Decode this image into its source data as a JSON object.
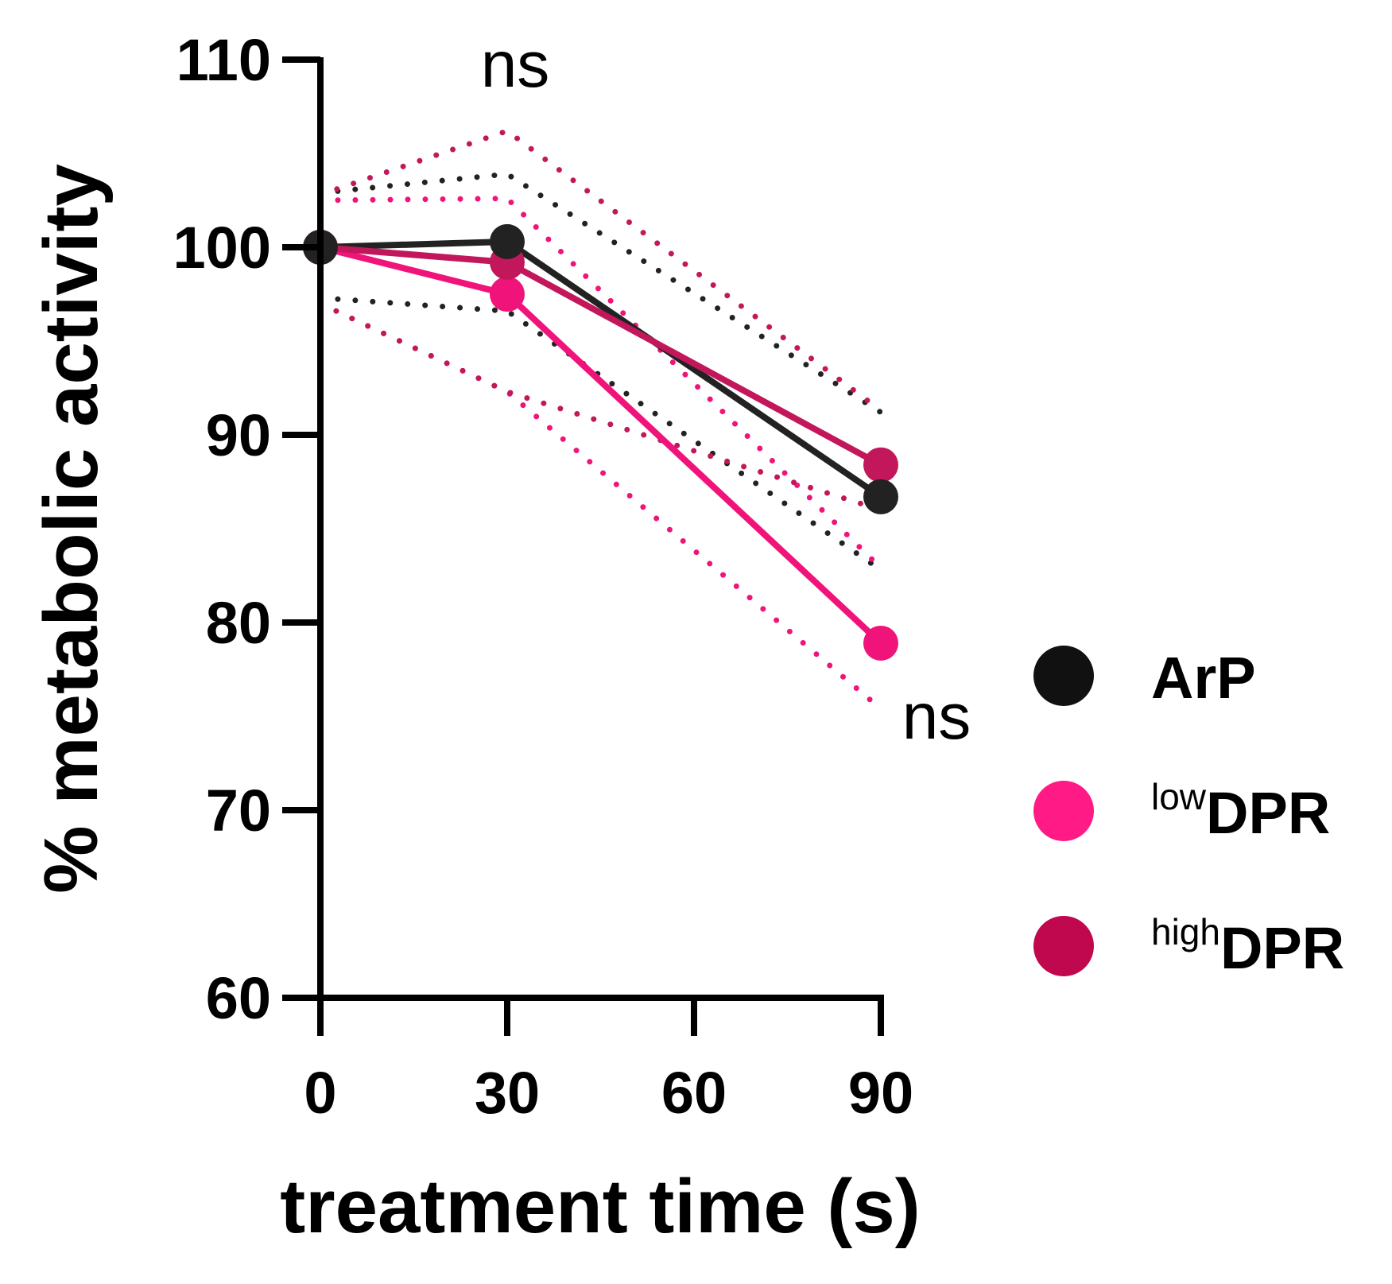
{
  "chart_data": {
    "type": "line",
    "title": "",
    "xlabel": "treatment time (s)",
    "ylabel": "% metabolic activity",
    "x": [
      0,
      30,
      90
    ],
    "xticks": [
      0,
      30,
      60,
      90
    ],
    "xlim": [
      0,
      90
    ],
    "yticks": [
      60,
      70,
      80,
      90,
      100,
      110
    ],
    "ylim": [
      60,
      110
    ],
    "grid": false,
    "legend_position": "right",
    "series": [
      {
        "name": "ArP",
        "legend_main": "ArP",
        "legend_sup": "",
        "color": "#222222",
        "legend_color": "#111111",
        "values": [
          100,
          100.3,
          86.7
        ],
        "upper": [
          102.9,
          103.9,
          91.2
        ],
        "lower": [
          97.3,
          96.6,
          82.8
        ]
      },
      {
        "name": "lowDPR",
        "legend_main": "DPR",
        "legend_sup": "low",
        "color": "#f0147a",
        "legend_color": "#ff1a85",
        "values": [
          100,
          97.5,
          78.9
        ],
        "upper": [
          102.5,
          102.6,
          82.9
        ],
        "lower": [
          97.0,
          92.3,
          75.4
        ]
      },
      {
        "name": "highDPR",
        "legend_main": "DPR",
        "legend_sup": "high",
        "color": "#c2185b",
        "legend_color": "#c0084f",
        "values": [
          100,
          99.2,
          88.4
        ],
        "upper": [
          102.8,
          106.2,
          91.3
        ],
        "lower": [
          97.0,
          92.3,
          86.0
        ]
      }
    ],
    "annotations": [
      {
        "text": "ns",
        "x": 30,
        "y": 110
      },
      {
        "text": "ns",
        "x": 90,
        "y": 75
      }
    ]
  }
}
